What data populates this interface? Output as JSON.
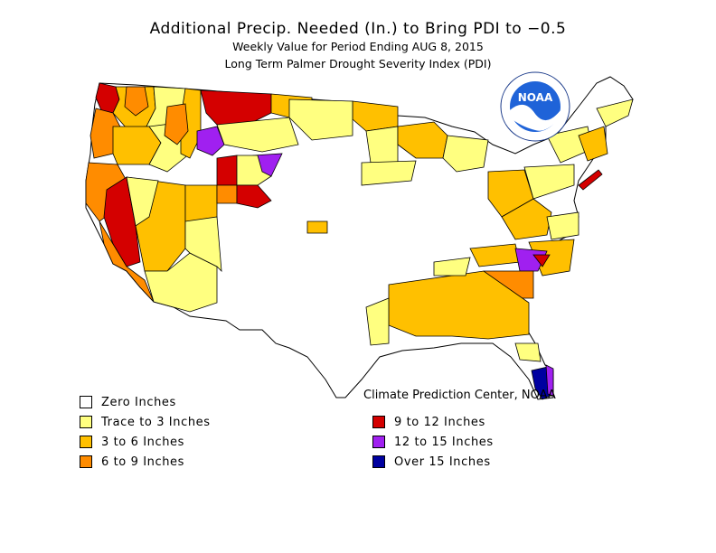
{
  "title": "Additional Precip. Needed (In.) to Bring PDI to −0.5",
  "subtitle1": "Weekly Value for Period Ending AUG  8, 2015",
  "subtitle2": "Long Term Palmer Drought Severity Index (PDI)",
  "credit": "Climate Prediction Center, NOAA",
  "logo": {
    "text": "NOAA",
    "icon": "noaa-logo-icon"
  },
  "colors": {
    "zero": "#ffffff",
    "trace_3": "#ffff80",
    "in_3_6": "#ffc000",
    "in_6_9": "#ff8c00",
    "in_9_12": "#d40000",
    "in_12_15": "#a020f0",
    "over_15": "#0000a0",
    "ocean": "#ffffff",
    "boundary": "#000000"
  },
  "legend": [
    {
      "label": "Zero Inches",
      "color": "#ffffff"
    },
    {
      "label": "Trace to 3 Inches",
      "color": "#ffff80"
    },
    {
      "label": "3 to 6 Inches",
      "color": "#ffc000"
    },
    {
      "label": "6 to 9 Inches",
      "color": "#ff8c00"
    },
    {
      "label": "9 to 12 Inches",
      "color": "#d40000"
    },
    {
      "label": "12 to 15 Inches",
      "color": "#a020f0"
    },
    {
      "label": "Over 15 Inches",
      "color": "#0000a0"
    }
  ]
}
